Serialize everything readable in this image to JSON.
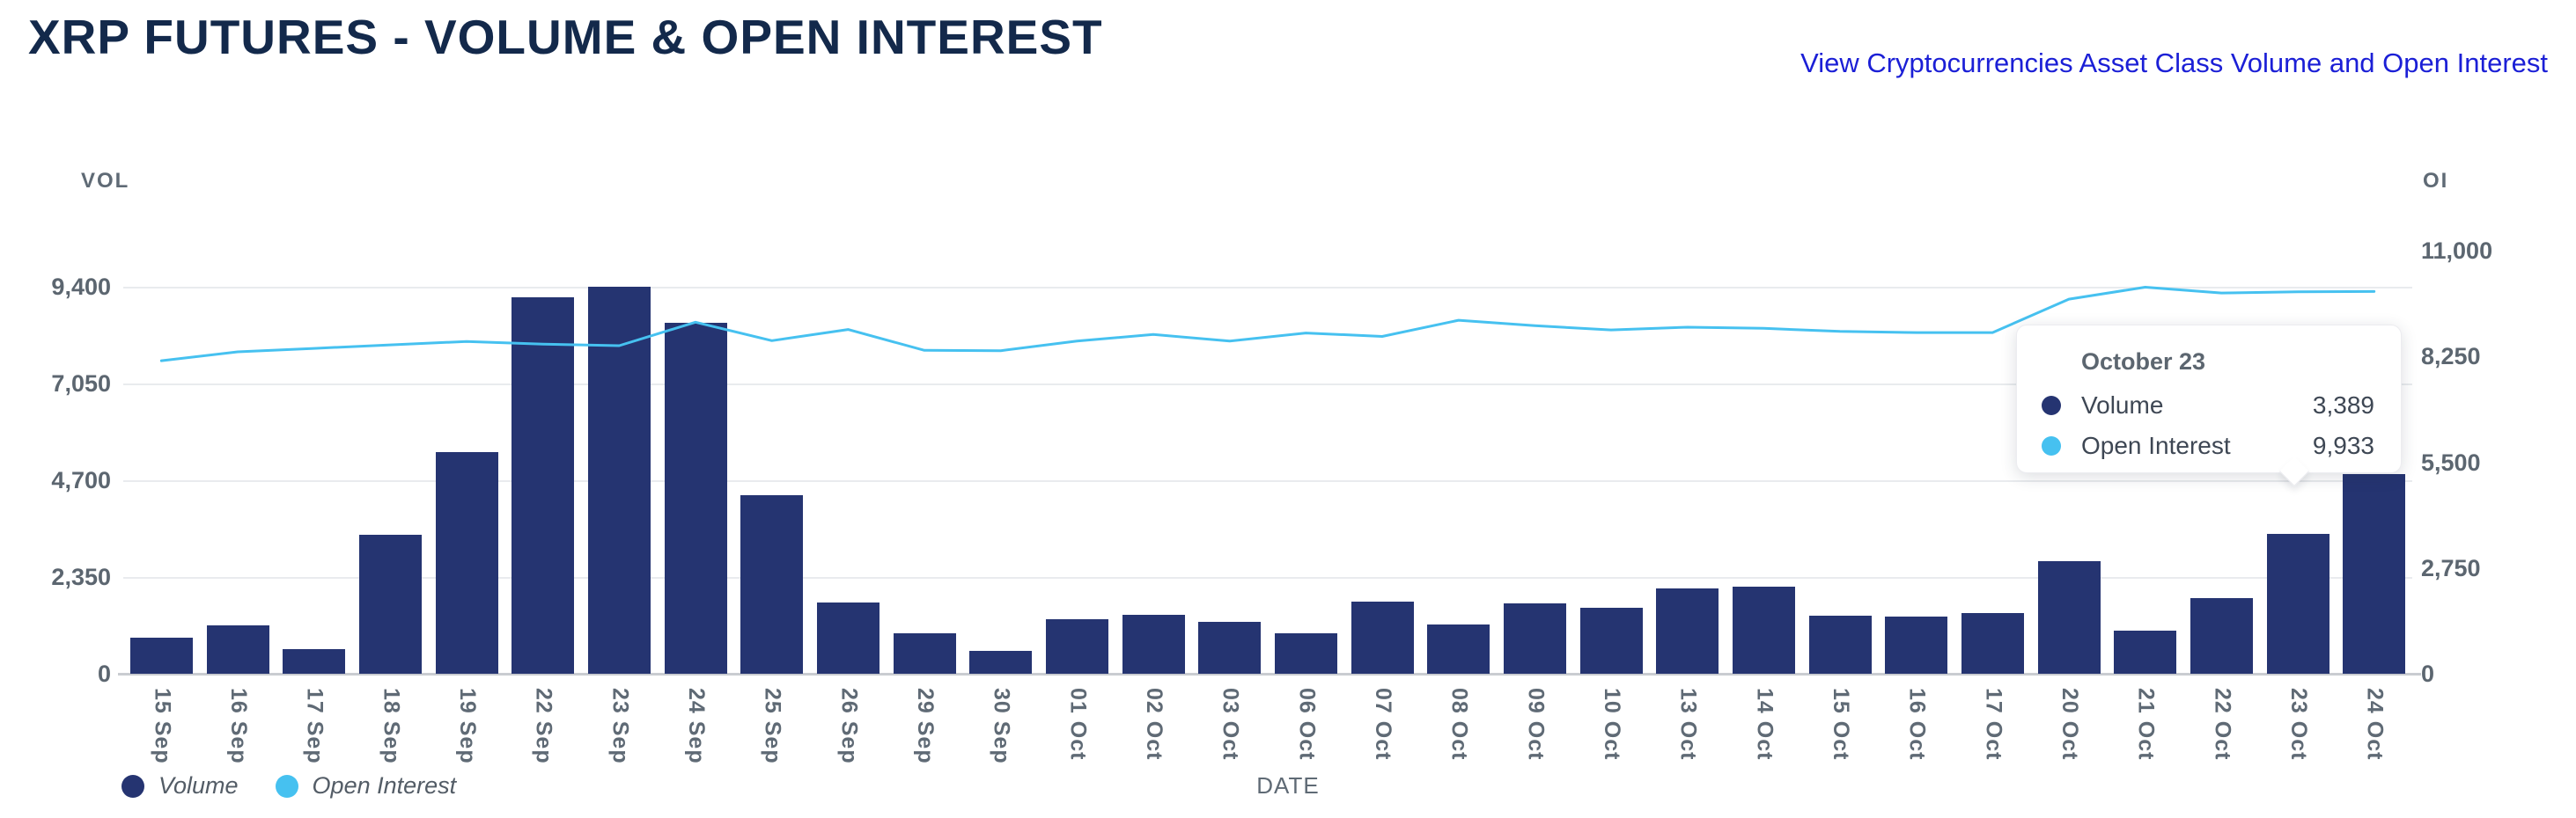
{
  "header": {
    "title": "XRP FUTURES - VOLUME & OPEN INTEREST",
    "link": "View Cryptocurrencies Asset Class Volume and Open Interest"
  },
  "colors": {
    "volume_bar": "#253471",
    "open_interest_line": "#46c1f0",
    "title_navy": "#13294b",
    "link_blue": "#1b1fd6",
    "axis_text": "#5c6670"
  },
  "chart_data": {
    "type": "bar",
    "subtype": "bar-with-line-overlay",
    "categories": [
      "15 Sep",
      "16 Sep",
      "17 Sep",
      "18 Sep",
      "19 Sep",
      "22 Sep",
      "23 Sep",
      "24 Sep",
      "25 Sep",
      "26 Sep",
      "29 Sep",
      "30 Sep",
      "01 Oct",
      "02 Oct",
      "03 Oct",
      "06 Oct",
      "07 Oct",
      "08 Oct",
      "09 Oct",
      "10 Oct",
      "13 Oct",
      "14 Oct",
      "15 Oct",
      "16 Oct",
      "17 Oct",
      "20 Oct",
      "21 Oct",
      "22 Oct",
      "23 Oct",
      "24 Oct"
    ],
    "series": [
      {
        "name": "Volume",
        "type": "bar",
        "axis": "left",
        "color": "#253471",
        "values": [
          870,
          1170,
          600,
          3380,
          5390,
          9150,
          9390,
          8520,
          4340,
          1720,
          980,
          560,
          1330,
          1440,
          1250,
          990,
          1750,
          1200,
          1700,
          1600,
          2080,
          2120,
          1420,
          1390,
          1470,
          2730,
          1040,
          1830,
          3389,
          4850
        ]
      },
      {
        "name": "Open Interest",
        "type": "line",
        "axis": "right",
        "color": "#46c1f0",
        "values": [
          8140,
          8370,
          8460,
          8550,
          8640,
          8570,
          8530,
          9140,
          8660,
          8950,
          8410,
          8400,
          8650,
          8820,
          8650,
          8860,
          8770,
          9190,
          9050,
          8940,
          9010,
          8980,
          8900,
          8870,
          8870,
          9740,
          10050,
          9900,
          9933,
          9940
        ]
      }
    ],
    "left_axis": {
      "label": "VOL",
      "min": 0,
      "max": 9400,
      "ticks": [
        0,
        2350,
        4700,
        7050,
        9400
      ],
      "tick_labels": [
        "0",
        "2,350",
        "4,700",
        "7,050",
        "9,400"
      ]
    },
    "right_axis": {
      "label": "OI",
      "min": 0,
      "max": 11000,
      "ticks": [
        0,
        2750,
        5500,
        8250,
        11000
      ],
      "tick_labels": [
        "0",
        "2,750",
        "5,500",
        "8,250",
        "11,000"
      ]
    },
    "xlabel": "DATE",
    "grid": "horizontal-on",
    "legend_position": "bottom-left"
  },
  "legend": [
    {
      "label": "Volume",
      "color": "#253471"
    },
    {
      "label": "Open Interest",
      "color": "#46c1f0"
    }
  ],
  "tooltip": {
    "title": "October 23",
    "hover_index": 28,
    "rows": [
      {
        "label": "Volume",
        "value": "3,389",
        "color": "#253471"
      },
      {
        "label": "Open Interest",
        "value": "9,933",
        "color": "#46c1f0"
      }
    ]
  }
}
